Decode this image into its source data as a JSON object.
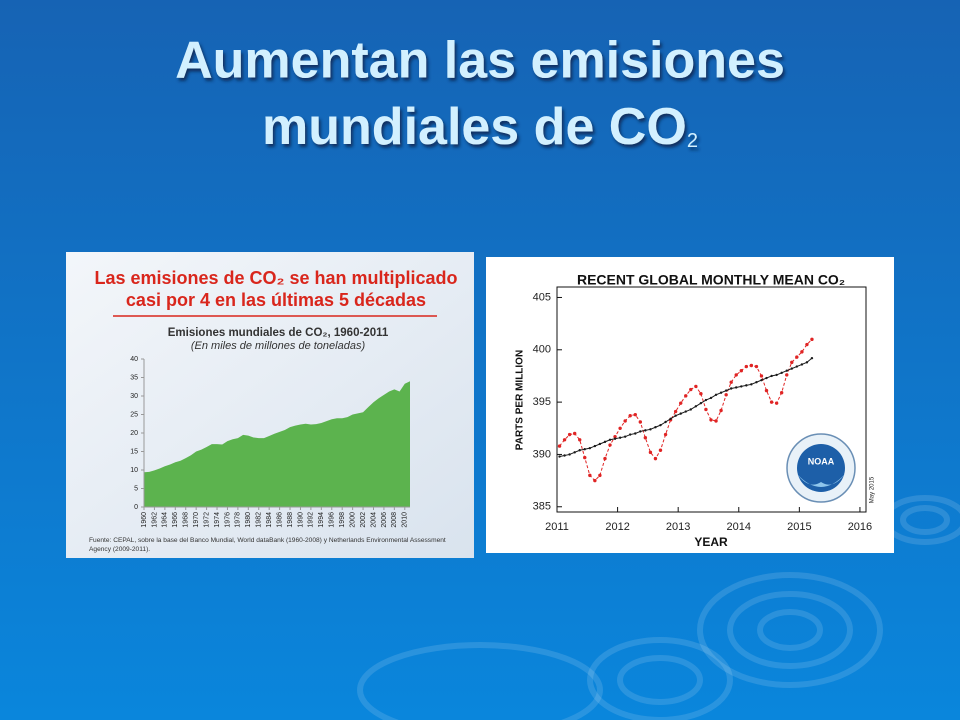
{
  "slide": {
    "title": [
      "Aumentan las emisiones",
      "mundiales de CO"
    ],
    "title_subscript": "2"
  },
  "chart_data": [
    {
      "type": "area",
      "heading": [
        "Las emisiones de CO₂ se han multiplicado",
        "casi por 4 en las últimas 5 décadas"
      ],
      "title": "Emisiones mundiales de CO₂, 1960-2011",
      "subtitle": "(En miles de millones de toneladas)",
      "source": [
        "Fuente: CEPAL, sobre la base del Banco Mundial, World dataBank (1960-2008) y Netherlands Environmental Assessment",
        "Agency (2009-2011)."
      ],
      "color": "#5cb34e",
      "x": [
        1960,
        1961,
        1962,
        1963,
        1964,
        1965,
        1966,
        1967,
        1968,
        1969,
        1970,
        1971,
        1972,
        1973,
        1974,
        1975,
        1976,
        1977,
        1978,
        1979,
        1980,
        1981,
        1982,
        1983,
        1984,
        1985,
        1986,
        1987,
        1988,
        1989,
        1990,
        1991,
        1992,
        1993,
        1994,
        1995,
        1996,
        1997,
        1998,
        1999,
        2000,
        2001,
        2002,
        2003,
        2004,
        2005,
        2006,
        2007,
        2008,
        2009,
        2010,
        2011
      ],
      "values": [
        9.4,
        9.5,
        9.9,
        10.4,
        11,
        11.5,
        12.1,
        12.5,
        13.2,
        14,
        15,
        15.5,
        16.2,
        17,
        17,
        16.9,
        17.8,
        18.3,
        18.6,
        19.5,
        19.3,
        18.8,
        18.6,
        18.6,
        19.2,
        19.8,
        20.3,
        20.8,
        21.6,
        22,
        22.3,
        22.5,
        22.3,
        22.4,
        22.7,
        23.2,
        23.7,
        24,
        24,
        24.3,
        25,
        25.3,
        25.6,
        27,
        28.3,
        29.4,
        30.3,
        31.2,
        31.8,
        31.2,
        33.3,
        34
      ],
      "xlim": [
        1960,
        2011
      ],
      "ylim": [
        0,
        40
      ],
      "xticks": [
        1960,
        1962,
        1964,
        1966,
        1968,
        1970,
        1972,
        1974,
        1976,
        1978,
        1980,
        1982,
        1984,
        1986,
        1988,
        1990,
        1992,
        1994,
        1996,
        1998,
        2000,
        2002,
        2004,
        2006,
        2008,
        2010
      ],
      "yticks": [
        0,
        5,
        10,
        15,
        20,
        25,
        30,
        35,
        40
      ]
    },
    {
      "type": "line",
      "title": "RECENT GLOBAL MONTHLY MEAN CO₂",
      "xlabel": "YEAR",
      "ylabel": "PARTS PER MILLION",
      "logo_text": "NOAA",
      "note": "May 2015",
      "x": [
        2011.042,
        2011.125,
        2011.208,
        2011.292,
        2011.375,
        2011.458,
        2011.542,
        2011.625,
        2011.708,
        2011.792,
        2011.875,
        2011.958,
        2012.042,
        2012.125,
        2012.208,
        2012.292,
        2012.375,
        2012.458,
        2012.542,
        2012.625,
        2012.708,
        2012.792,
        2012.875,
        2012.958,
        2013.042,
        2013.125,
        2013.208,
        2013.292,
        2013.375,
        2013.458,
        2013.542,
        2013.625,
        2013.708,
        2013.792,
        2013.875,
        2013.958,
        2014.042,
        2014.125,
        2014.208,
        2014.292,
        2014.375,
        2014.458,
        2014.542,
        2014.625,
        2014.708,
        2014.792,
        2014.875,
        2014.958,
        2015.042,
        2015.125,
        2015.208
      ],
      "series": [
        {
          "color": "#e02424",
          "line_style": "dashed",
          "values": [
            390.8,
            391.4,
            391.9,
            392.0,
            391.4,
            389.7,
            388.0,
            387.5,
            388.0,
            389.6,
            390.9,
            391.7,
            392.5,
            393.2,
            393.7,
            393.8,
            393.1,
            391.6,
            390.2,
            389.6,
            390.4,
            391.9,
            393.3,
            394.1,
            394.9,
            395.6,
            396.2,
            396.5,
            395.8,
            394.3,
            393.3,
            393.2,
            394.2,
            395.7,
            396.9,
            397.6,
            398.0,
            398.4,
            398.5,
            398.4,
            397.5,
            396.1,
            395.0,
            394.9,
            395.9,
            397.6,
            398.8,
            399.3,
            399.8,
            400.5,
            401.0
          ]
        },
        {
          "color": "#1a1a1a",
          "line_style": "solid",
          "values": [
            389.8,
            389.9,
            390.0,
            390.2,
            390.4,
            390.5,
            390.6,
            390.8,
            391.0,
            391.2,
            391.4,
            391.5,
            391.6,
            391.7,
            391.9,
            392.0,
            392.2,
            392.3,
            392.4,
            392.6,
            392.8,
            393.1,
            393.4,
            393.7,
            393.9,
            394.1,
            394.3,
            394.6,
            394.9,
            395.2,
            395.4,
            395.7,
            395.9,
            396.1,
            396.3,
            396.4,
            396.5,
            396.6,
            396.7,
            396.9,
            397.1,
            397.3,
            397.5,
            397.6,
            397.8,
            398.0,
            398.2,
            398.4,
            398.6,
            398.8,
            399.2
          ]
        }
      ],
      "xlim": [
        2011,
        2016.1
      ],
      "ylim": [
        384.5,
        406
      ],
      "xticks": [
        2011,
        2012,
        2013,
        2014,
        2015,
        2016
      ],
      "yticks": [
        385,
        390,
        395,
        400,
        405
      ]
    }
  ]
}
